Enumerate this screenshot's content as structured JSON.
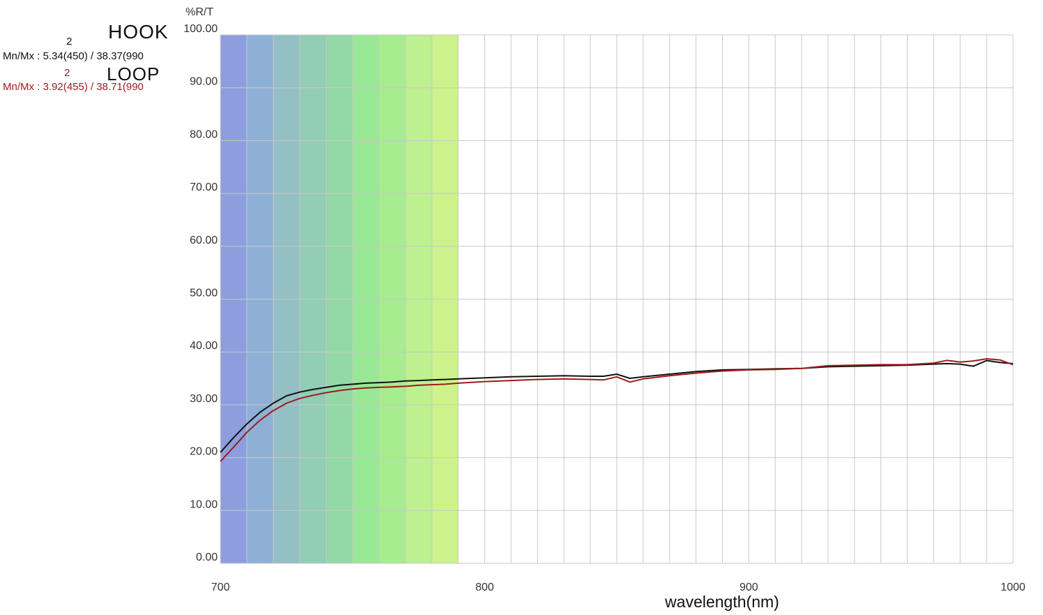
{
  "legend": [
    {
      "name": "HOOK",
      "sup": "2",
      "stat": "Mn/Mx : 5.34(450) / 38.37(990",
      "color": "#111111"
    },
    {
      "name": "LOOP",
      "sup": "2",
      "stat": "Mn/Mx : 3.92(455) / 38.71(990",
      "color": "#9e1b1b"
    }
  ],
  "chart_data": {
    "type": "line",
    "ylabel": "%R/T",
    "xlabel": "wavelength(nm)",
    "xlim": [
      700,
      1000
    ],
    "ylim": [
      0,
      100
    ],
    "x_ticks": [
      "700",
      "800",
      "900",
      "1000"
    ],
    "y_ticks": [
      "0.00",
      "10.00",
      "20.00",
      "30.00",
      "40.00",
      "50.00",
      "60.00",
      "70.00",
      "80.00",
      "90.00",
      "100.00"
    ],
    "grid": true,
    "visible_band": {
      "colors": [
        "#8c9ede",
        "#8fb0d6",
        "#93bfc5",
        "#92cdb6",
        "#93d9a6",
        "#99e896",
        "#a7ec8e",
        "#bdf08e",
        "#ccf38b"
      ]
    },
    "series": [
      {
        "name": "HOOK",
        "color": "#111111",
        "x": [
          700,
          705,
          710,
          715,
          720,
          725,
          730,
          735,
          740,
          745,
          750,
          755,
          760,
          765,
          770,
          775,
          780,
          785,
          790,
          800,
          810,
          820,
          830,
          840,
          845,
          850,
          855,
          860,
          870,
          880,
          890,
          900,
          910,
          920,
          930,
          940,
          950,
          960,
          970,
          975,
          980,
          985,
          990,
          995,
          1000
        ],
        "y": [
          21.0,
          23.8,
          26.4,
          28.6,
          30.3,
          31.7,
          32.4,
          32.9,
          33.3,
          33.7,
          33.9,
          34.1,
          34.2,
          34.3,
          34.5,
          34.6,
          34.7,
          34.8,
          34.9,
          35.1,
          35.3,
          35.4,
          35.5,
          35.4,
          35.4,
          35.8,
          35.0,
          35.3,
          35.8,
          36.3,
          36.6,
          36.7,
          36.8,
          36.9,
          37.2,
          37.3,
          37.4,
          37.5,
          37.7,
          37.8,
          37.7,
          37.3,
          38.37,
          38.0,
          37.8
        ]
      },
      {
        "name": "LOOP",
        "color": "#9e1b1b",
        "x": [
          700,
          705,
          710,
          715,
          720,
          725,
          730,
          735,
          740,
          745,
          750,
          755,
          760,
          765,
          770,
          775,
          780,
          785,
          790,
          800,
          810,
          820,
          830,
          840,
          845,
          850,
          855,
          860,
          870,
          880,
          890,
          900,
          910,
          920,
          930,
          940,
          950,
          960,
          970,
          975,
          980,
          985,
          990,
          995,
          1000
        ],
        "y": [
          19.3,
          22.0,
          24.8,
          27.1,
          28.9,
          30.3,
          31.2,
          31.8,
          32.3,
          32.7,
          33.0,
          33.2,
          33.3,
          33.4,
          33.5,
          33.7,
          33.8,
          33.9,
          34.1,
          34.4,
          34.6,
          34.8,
          34.9,
          34.8,
          34.7,
          35.3,
          34.3,
          34.9,
          35.5,
          36.0,
          36.4,
          36.6,
          36.7,
          36.9,
          37.4,
          37.5,
          37.6,
          37.6,
          37.9,
          38.4,
          38.1,
          38.3,
          38.71,
          38.5,
          37.6
        ]
      }
    ]
  }
}
